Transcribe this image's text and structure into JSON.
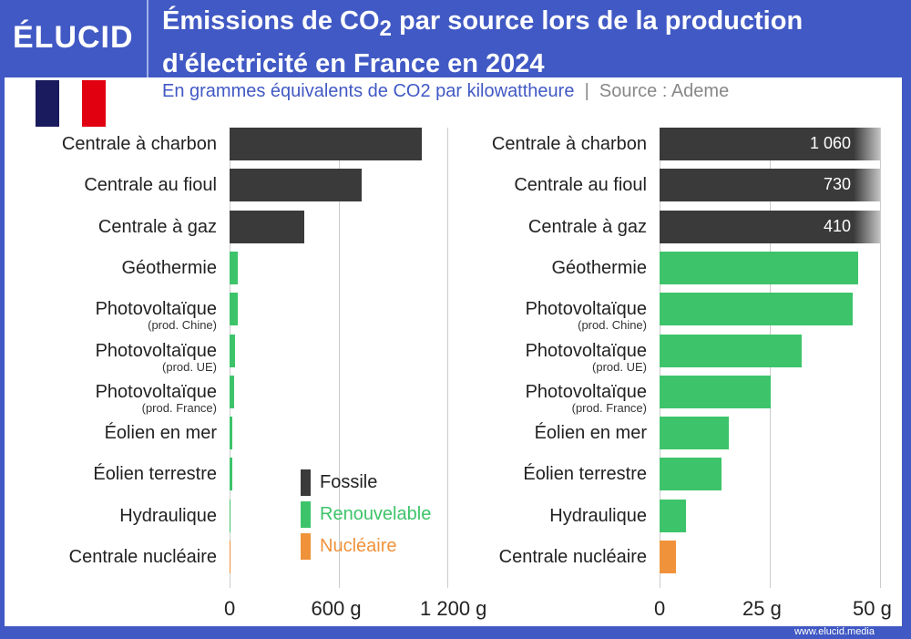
{
  "header": {
    "logo": "ÉLUCID",
    "title_part1": "Émissions de CO",
    "title_sub": "2",
    "title_part2": " par source lors de la production",
    "title_line2": "d'électricité en France en 2024",
    "subtitle": "En grammes équivalents de CO2 par kilowattheure",
    "source": "Source : Ademe",
    "flag_colors": [
      "#1a1a5e",
      "#ffffff",
      "#e1000f"
    ]
  },
  "footer": {
    "url": "www.elucid.media"
  },
  "legend": [
    {
      "label": "Fossile",
      "color": "#3a3a3a"
    },
    {
      "label": "Renouvelable",
      "color": "#3dc46a"
    },
    {
      "label": "Nucléaire",
      "color": "#f0923a"
    }
  ],
  "chart_data": [
    {
      "type": "bar",
      "orientation": "horizontal",
      "xlim": [
        0,
        1200
      ],
      "ticks": [
        "0",
        "600 g",
        "1 200 g"
      ],
      "tick_values": [
        0,
        600,
        1200
      ],
      "categories": [
        [
          "Centrale à charbon",
          ""
        ],
        [
          "Centrale au fioul",
          ""
        ],
        [
          "Centrale à gaz",
          ""
        ],
        [
          "Géothermie",
          ""
        ],
        [
          "Photovoltaïque",
          "(prod. Chine)"
        ],
        [
          "Photovoltaïque",
          "(prod. UE)"
        ],
        [
          "Photovoltaïque",
          "(prod. France)"
        ],
        [
          "Éolien en mer",
          ""
        ],
        [
          "Éolien terrestre",
          ""
        ],
        [
          "Hydraulique",
          ""
        ],
        [
          "Centrale nucléaire",
          ""
        ]
      ],
      "values": [
        1060,
        730,
        410,
        45,
        43.9,
        32.3,
        25.2,
        15.6,
        14.1,
        6,
        3.7
      ],
      "groups": [
        "Fossile",
        "Fossile",
        "Fossile",
        "Renouvelable",
        "Renouvelable",
        "Renouvelable",
        "Renouvelable",
        "Renouvelable",
        "Renouvelable",
        "Renouvelable",
        "Nucléaire"
      ]
    },
    {
      "type": "bar",
      "orientation": "horizontal",
      "xlim": [
        0,
        50
      ],
      "ticks": [
        "0",
        "25 g",
        "50 g"
      ],
      "tick_values": [
        0,
        25,
        50
      ],
      "categories": [
        [
          "Centrale à charbon",
          ""
        ],
        [
          "Centrale au fioul",
          ""
        ],
        [
          "Centrale à gaz",
          ""
        ],
        [
          "Géothermie",
          ""
        ],
        [
          "Photovoltaïque",
          "(prod. Chine)"
        ],
        [
          "Photovoltaïque",
          "(prod. UE)"
        ],
        [
          "Photovoltaïque",
          "(prod. France)"
        ],
        [
          "Éolien en mer",
          ""
        ],
        [
          "Éolien terrestre",
          ""
        ],
        [
          "Hydraulique",
          ""
        ],
        [
          "Centrale nucléaire",
          ""
        ]
      ],
      "values": [
        1060,
        730,
        410,
        45,
        43.9,
        32.3,
        25.2,
        15.6,
        14.1,
        6,
        3.7
      ],
      "data_labels": [
        "1 060",
        "730",
        "410",
        "",
        "",
        "",
        "",
        "",
        "",
        "",
        ""
      ],
      "groups": [
        "Fossile",
        "Fossile",
        "Fossile",
        "Renouvelable",
        "Renouvelable",
        "Renouvelable",
        "Renouvelable",
        "Renouvelable",
        "Renouvelable",
        "Renouvelable",
        "Nucléaire"
      ]
    }
  ]
}
